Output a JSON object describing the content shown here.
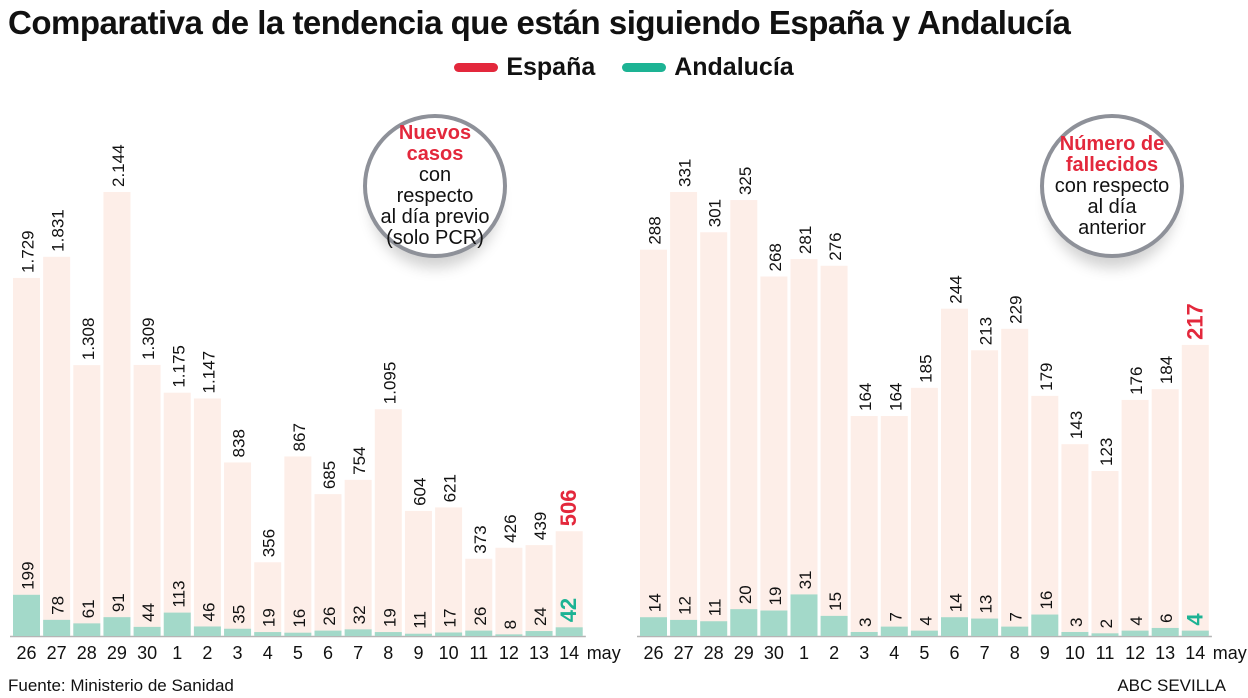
{
  "title": "Comparativa de la tendencia que están siguiendo España y Andalucía",
  "legend": [
    {
      "name": "España",
      "color": "#e3283c"
    },
    {
      "name": "Andalucía",
      "color": "#1db394"
    }
  ],
  "source": "Fuente: Ministerio de Sanidad",
  "credit": "ABC SEVILLA",
  "colors": {
    "spain_bar": "#fdeee8",
    "andalucia_bar": "#a3d9c9",
    "spain_highlight": "#e3283c",
    "andalucia_highlight": "#1db394",
    "baseline": "#b5b5b5"
  },
  "chart_data": [
    {
      "type": "bar",
      "annotation": {
        "highlight": "Nuevos casos",
        "rest1": "con",
        "rest2": "respecto",
        "rest3": "al día previo",
        "rest4": "(solo PCR)"
      },
      "categories": [
        "26",
        "27",
        "28",
        "29",
        "30",
        "1",
        "2",
        "3",
        "4",
        "5",
        "6",
        "7",
        "8",
        "9",
        "10",
        "11",
        "12",
        "13",
        "14"
      ],
      "unit_label": "may",
      "series": [
        {
          "name": "España",
          "values": [
            1729,
            1831,
            1308,
            2144,
            1309,
            1175,
            1147,
            838,
            356,
            867,
            685,
            754,
            1095,
            604,
            621,
            373,
            426,
            439,
            506
          ],
          "labels": [
            "1.729",
            "1.831",
            "1.308",
            "2.144",
            "1.309",
            "1.175",
            "1.147",
            "838",
            "356",
            "867",
            "685",
            "754",
            "1.095",
            "604",
            "621",
            "373",
            "426",
            "439",
            "506"
          ]
        },
        {
          "name": "Andalucía",
          "values": [
            199,
            78,
            61,
            91,
            44,
            113,
            46,
            35,
            19,
            16,
            26,
            32,
            19,
            11,
            17,
            26,
            8,
            24,
            42
          ],
          "labels": [
            "199",
            "78",
            "61",
            "91",
            "44",
            "113",
            "46",
            "35",
            "19",
            "16",
            "26",
            "32",
            "19",
            "11",
            "17",
            "26",
            "8",
            "24",
            "42"
          ]
        }
      ],
      "ylim": [
        0,
        2144
      ]
    },
    {
      "type": "bar",
      "annotation": {
        "highlight": "Número de fallecidos",
        "rest1": "",
        "rest2": "con respecto",
        "rest3": "al día",
        "rest4": "anterior"
      },
      "categories": [
        "26",
        "27",
        "28",
        "29",
        "30",
        "1",
        "2",
        "3",
        "4",
        "5",
        "6",
        "7",
        "8",
        "9",
        "10",
        "11",
        "12",
        "13",
        "14"
      ],
      "unit_label": "may",
      "series": [
        {
          "name": "España",
          "values": [
            288,
            331,
            301,
            325,
            268,
            281,
            276,
            164,
            164,
            185,
            244,
            213,
            229,
            179,
            143,
            123,
            176,
            184,
            217
          ],
          "labels": [
            "288",
            "331",
            "301",
            "325",
            "268",
            "281",
            "276",
            "164",
            "164",
            "185",
            "244",
            "213",
            "229",
            "179",
            "143",
            "123",
            "176",
            "184",
            "217"
          ]
        },
        {
          "name": "Andalucía",
          "values": [
            14,
            12,
            11,
            20,
            19,
            31,
            15,
            3,
            7,
            4,
            14,
            13,
            7,
            16,
            3,
            2,
            4,
            6,
            4
          ],
          "labels": [
            "14",
            "12",
            "11",
            "20",
            "19",
            "31",
            "15",
            "3",
            "7",
            "4",
            "14",
            "13",
            "7",
            "16",
            "3",
            "2",
            "4",
            "6",
            "4"
          ]
        }
      ],
      "ylim": [
        0,
        331
      ]
    }
  ]
}
